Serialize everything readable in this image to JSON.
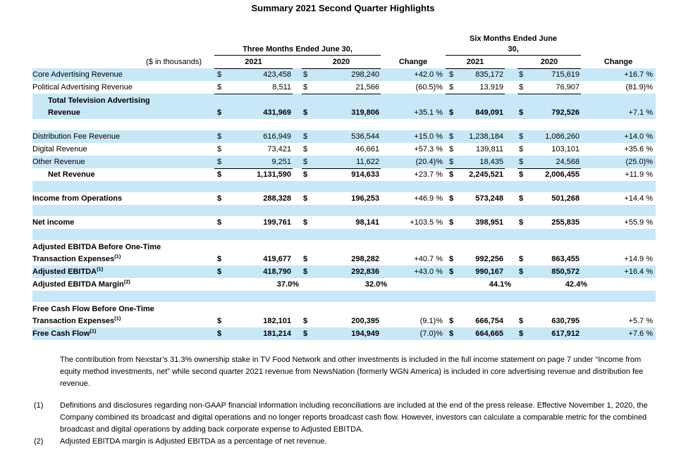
{
  "title": "Summary 2021 Second Quarter Highlights",
  "colors": {
    "stripe": "#c9e8f7",
    "text": "#000000",
    "rule": "#000000"
  },
  "table": {
    "group_headers": {
      "three_months": "Three Months Ended June 30,",
      "six_months": "Six Months Ended June\n30,"
    },
    "col_headers": {
      "label": "($ in thousands)",
      "y2021_3mo": "2021",
      "y2020_3mo": "2020",
      "change_3mo": "Change",
      "y2021_6mo": "2021",
      "y2020_6mo": "2020",
      "change_6mo": "Change"
    },
    "rows": [
      {
        "label": "Core Advertising Revenue",
        "sup": "",
        "bg": "blue",
        "bold": false,
        "indent": false,
        "underline": false,
        "two_line": false,
        "margin_row": false,
        "cells": [
          "$",
          "423,458",
          "$",
          "298,240",
          "+42.0 %",
          "$",
          "835,172",
          "$",
          "715,619",
          "+16.7 %"
        ]
      },
      {
        "label": "Political Advertising Revenue",
        "sup": "",
        "bg": "white",
        "bold": false,
        "indent": false,
        "underline": true,
        "two_line": false,
        "margin_row": false,
        "cells": [
          "$",
          "8,511",
          "$",
          "21,566",
          "(60.5)%",
          "$",
          "13,919",
          "$",
          "76,907",
          "(81.9)%"
        ]
      },
      {
        "label": "Total Television Advertising\nRevenue",
        "sup": "",
        "bg": "blue",
        "bold": true,
        "indent": true,
        "underline": false,
        "two_line": true,
        "margin_row": false,
        "cells": [
          "$",
          "431,969",
          "$",
          "319,806",
          "+35.1 %",
          "$",
          "849,091",
          "$",
          "792,526",
          "+7.1 %"
        ]
      },
      {
        "spacer": true,
        "bg": "white"
      },
      {
        "label": "Distribution Fee Revenue",
        "sup": "",
        "bg": "blue",
        "bold": false,
        "indent": false,
        "underline": false,
        "two_line": false,
        "margin_row": false,
        "cells": [
          "$",
          "616,949",
          "$",
          "536,544",
          "+15.0 %",
          "$",
          "1,238,184",
          "$",
          "1,086,260",
          "+14.0 %"
        ]
      },
      {
        "label": "Digital Revenue",
        "sup": "",
        "bg": "white",
        "bold": false,
        "indent": false,
        "underline": false,
        "two_line": false,
        "margin_row": false,
        "cells": [
          "$",
          "73,421",
          "$",
          "46,661",
          "+57.3 %",
          "$",
          "139,811",
          "$",
          "103,101",
          "+35.6 %"
        ]
      },
      {
        "label": "Other Revenue",
        "sup": "",
        "bg": "blue",
        "bold": false,
        "indent": false,
        "underline": true,
        "two_line": false,
        "margin_row": false,
        "cells": [
          "$",
          "9,251",
          "$",
          "11,622",
          "(20.4)%",
          "$",
          "18,435",
          "$",
          "24,568",
          "(25.0)%"
        ]
      },
      {
        "label": "Net Revenue",
        "sup": "",
        "bg": "white",
        "bold": true,
        "indent": true,
        "underline": false,
        "two_line": false,
        "margin_row": false,
        "cells": [
          "$",
          "1,131,590",
          "$",
          "914,633",
          "+23.7 %",
          "$",
          "2,245,521",
          "$",
          "2,006,455",
          "+11.9 %"
        ]
      },
      {
        "spacer": true,
        "bg": "blue"
      },
      {
        "label": "Income from Operations",
        "sup": "",
        "bg": "white",
        "bold": true,
        "indent": false,
        "underline": false,
        "two_line": false,
        "margin_row": false,
        "cells": [
          "$",
          "288,328",
          "$",
          "196,253",
          "+46.9 %",
          "$",
          "573,248",
          "$",
          "501,268",
          "+14.4 %"
        ]
      },
      {
        "spacer": true,
        "bg": "blue"
      },
      {
        "label": "Net income",
        "sup": "",
        "bg": "white",
        "bold": true,
        "indent": false,
        "underline": false,
        "two_line": false,
        "margin_row": false,
        "cells": [
          "$",
          "199,761",
          "$",
          "98,141",
          "+103.5 %",
          "$",
          "398,951",
          "$",
          "255,835",
          "+55.9 %"
        ]
      },
      {
        "spacer": true,
        "bg": "blue"
      },
      {
        "label": "Adjusted EBITDA Before One-Time\nTransaction Expenses",
        "sup": "(1)",
        "bg": "white",
        "bold": true,
        "indent": false,
        "underline": false,
        "two_line": true,
        "margin_row": false,
        "cells": [
          "$",
          "419,677",
          "$",
          "298,282",
          "+40.7 %",
          "$",
          "992,256",
          "$",
          "863,455",
          "+14.9 %"
        ]
      },
      {
        "label": "Adjusted EBITDA",
        "sup": "(1)",
        "bg": "blue",
        "bold": true,
        "indent": false,
        "underline": false,
        "two_line": false,
        "margin_row": false,
        "cells": [
          "$",
          "418,790",
          "$",
          "292,836",
          "+43.0 %",
          "$",
          "990,167",
          "$",
          "850,572",
          "+16.4 %"
        ]
      },
      {
        "label": "Adjusted EBITDA Margin",
        "sup": "(2)",
        "bg": "white",
        "bold": true,
        "indent": false,
        "underline": false,
        "two_line": false,
        "margin_row": true,
        "cells": [
          "",
          "37.0%",
          "",
          "32.0%",
          "",
          "",
          "44.1%",
          "",
          "42.4%",
          ""
        ]
      },
      {
        "spacer": true,
        "bg": "blue"
      },
      {
        "label": "Free Cash Flow Before One-Time\nTransaction Expenses",
        "sup": "(1)",
        "bg": "white",
        "bold": true,
        "indent": false,
        "underline": false,
        "two_line": true,
        "margin_row": false,
        "cells": [
          "$",
          "182,101",
          "$",
          "200,395",
          "(9.1)%",
          "$",
          "666,754",
          "$",
          "630,795",
          "+5.7 %"
        ]
      },
      {
        "label": "Free Cash Flow",
        "sup": "(1)",
        "bg": "blue",
        "bold": true,
        "indent": false,
        "underline": false,
        "two_line": false,
        "margin_row": false,
        "cells": [
          "$",
          "181,214",
          "$",
          "194,949",
          "(7.0)%",
          "$",
          "664,665",
          "$",
          "617,912",
          "+7.6 %"
        ]
      }
    ]
  },
  "notes": {
    "paragraph": "The contribution from Nexstar’s 31.3% ownership stake in TV Food Network and other investments is included in the full income statement on page 7 under “Income from equity method investments, net” while second quarter 2021 revenue from NewsNation (formerly WGN America) is included in core advertising revenue and distribution fee revenue.",
    "footnotes": [
      {
        "marker": "(1)",
        "text": "Definitions and disclosures regarding non-GAAP financial information including reconciliations are included at the end of the press release. Effective November 1, 2020, the Company combined its broadcast and digital operations and no longer reports broadcast cash flow. However, investors can calculate a comparable metric for the combined broadcast and digital operations by adding back corporate expense to Adjusted EBITDA."
      },
      {
        "marker": "(2)",
        "text": "Adjusted EBITDA margin is Adjusted EBITDA as a percentage of net revenue."
      }
    ]
  }
}
